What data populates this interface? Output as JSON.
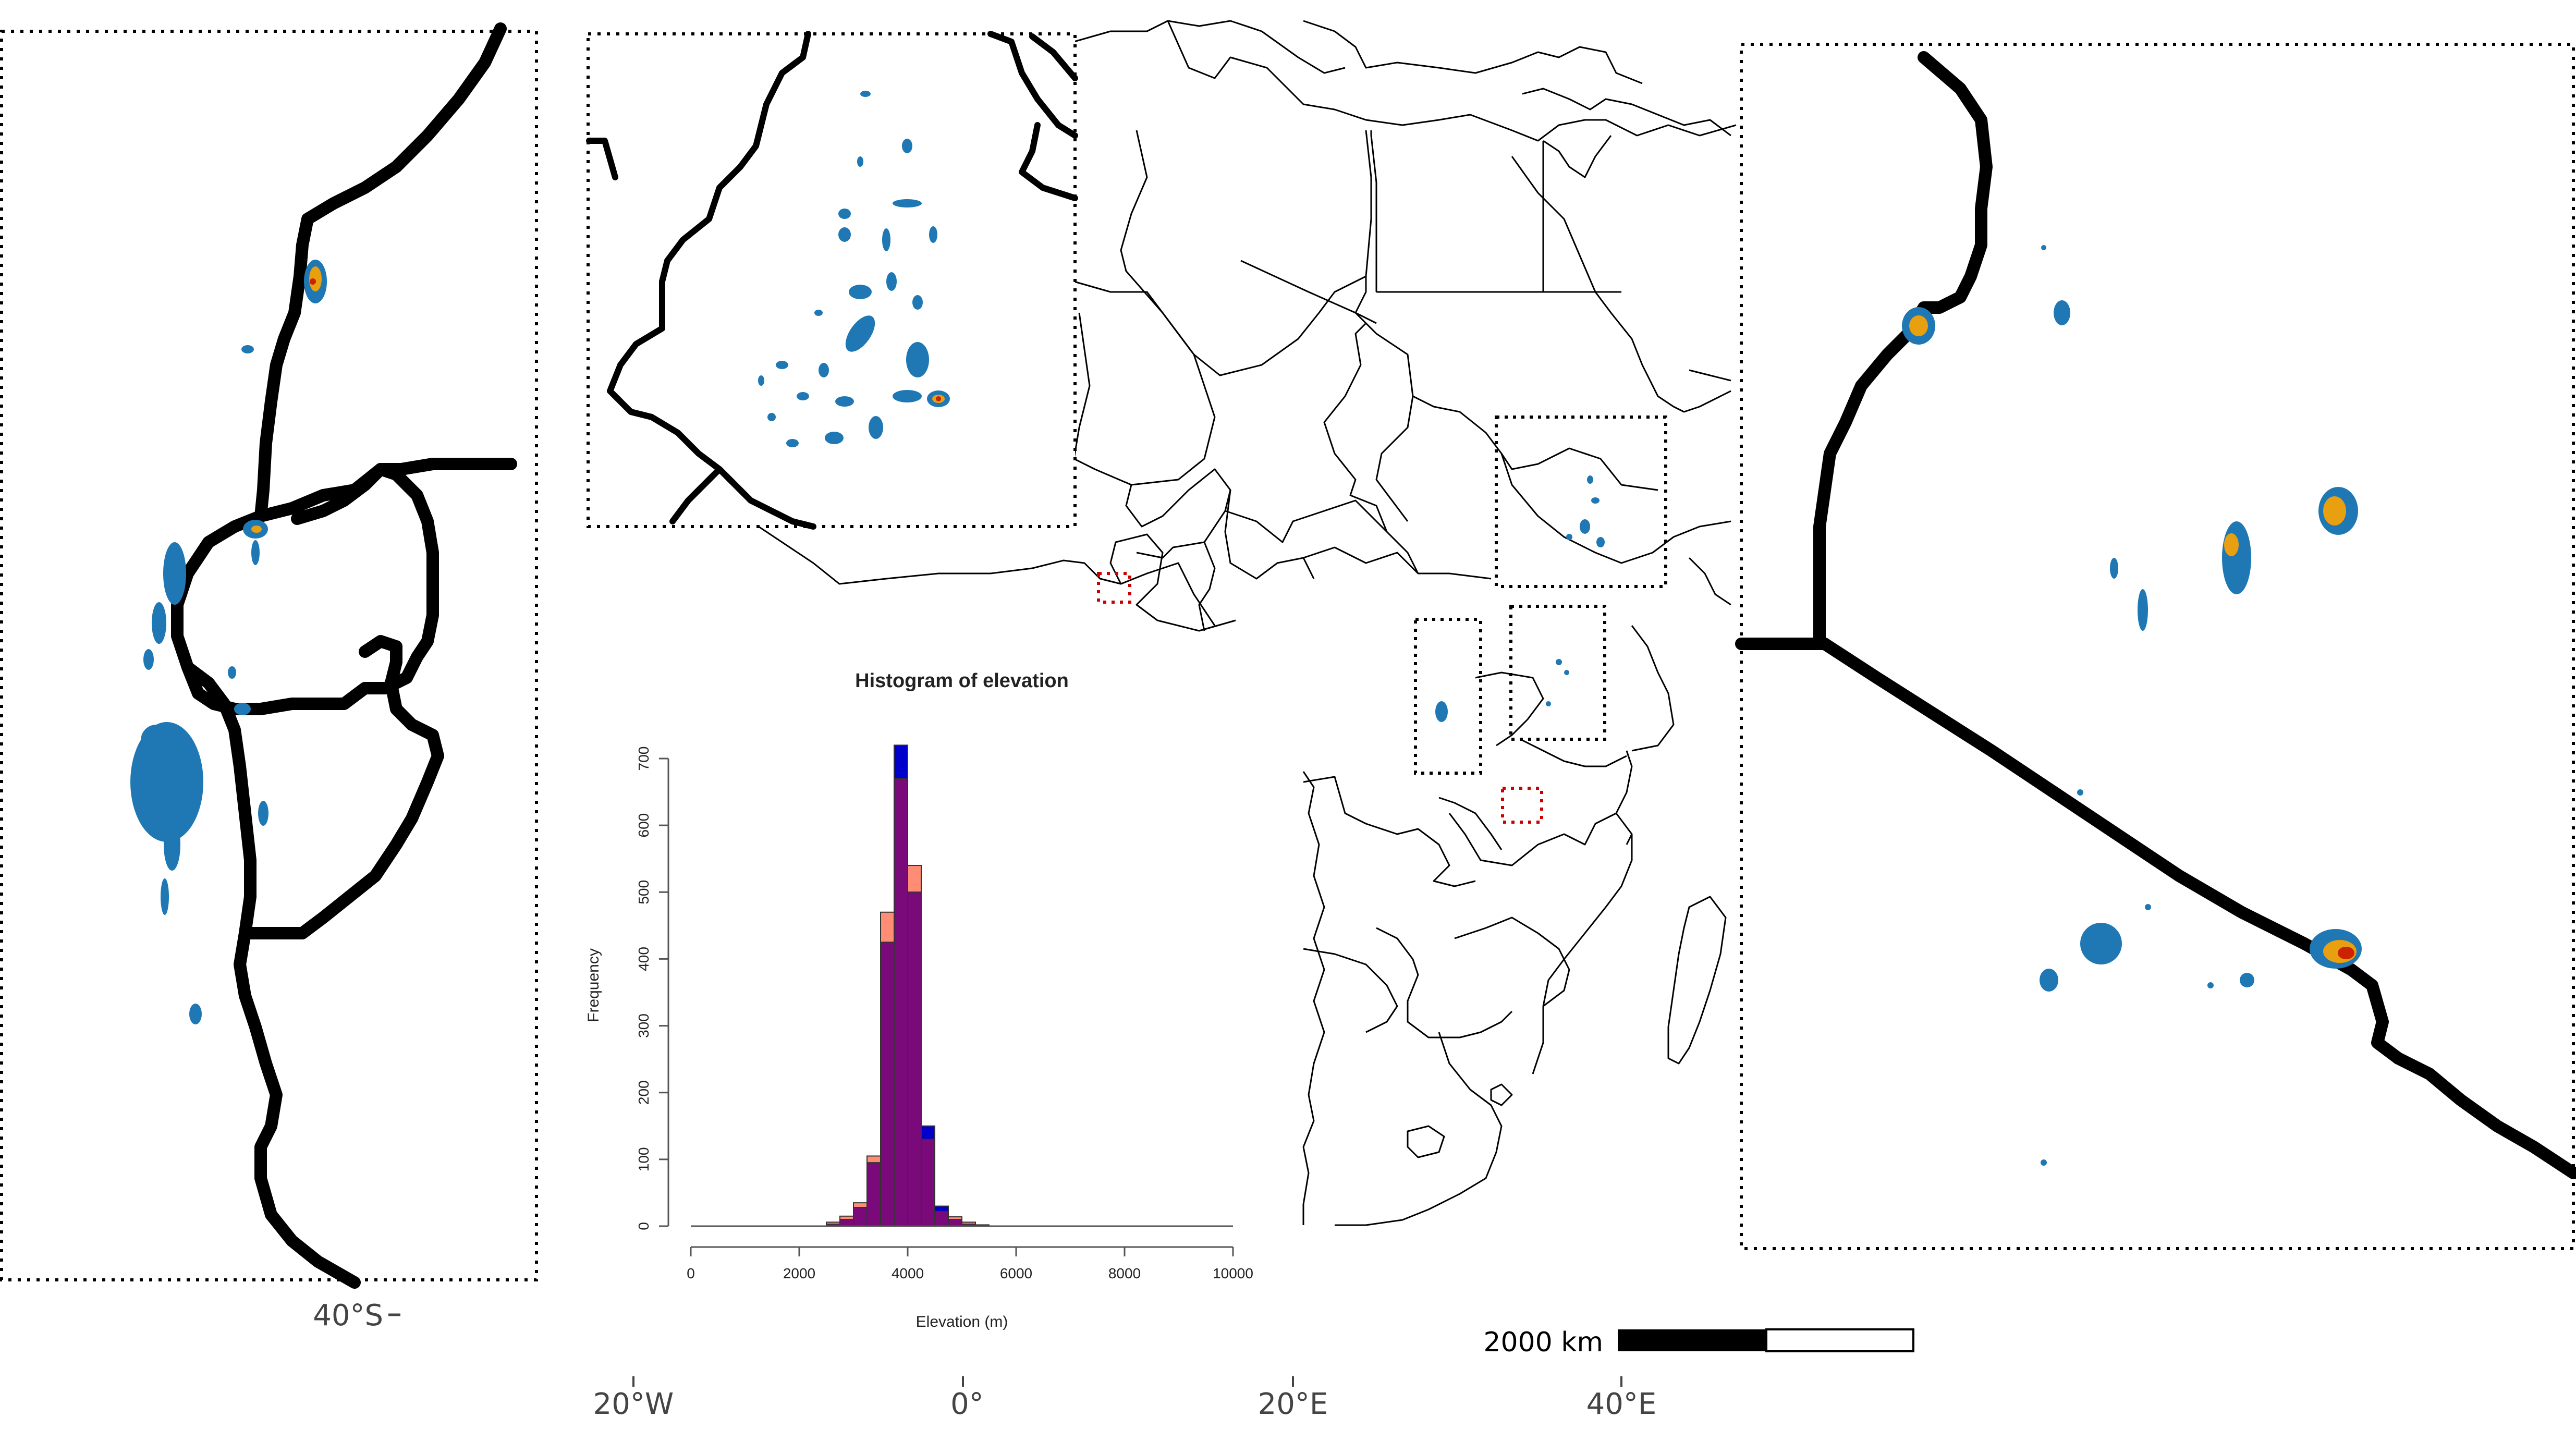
{
  "map": {
    "axis_labels": {
      "lon": [
        "20°W",
        "0°",
        "20°E",
        "40°E"
      ],
      "lat": [
        "40°S"
      ]
    },
    "scale_bar": {
      "label": "2000 km",
      "distance_km": 2000
    }
  },
  "chart_data": {
    "type": "bar",
    "title": "Histogram of elevation",
    "xlabel": "Elevation (m)",
    "ylabel": "Frequency",
    "xlim": [
      0,
      10000
    ],
    "ylim": [
      0,
      700
    ],
    "x_ticks": [
      "0",
      "2000",
      "4000",
      "6000",
      "8000",
      "10000"
    ],
    "y_ticks": [
      "0",
      "100",
      "200",
      "300",
      "400",
      "500",
      "600",
      "700"
    ],
    "bin_width": 250,
    "bin_starts": [
      2500,
      2750,
      3000,
      3250,
      3500,
      3750,
      4000,
      4250,
      4500,
      4750,
      5000,
      5250
    ],
    "series": [
      {
        "color": "#0000cc",
        "values": [
          3,
          10,
          28,
          95,
          425,
          720,
          500,
          150,
          30,
          10,
          3,
          1
        ]
      },
      {
        "color": "#ff8c74",
        "values": [
          6,
          15,
          35,
          105,
          470,
          670,
          540,
          130,
          22,
          14,
          6,
          2
        ]
      }
    ],
    "overlap_color": "#7a0a7a"
  },
  "colors": {
    "country_border": "#000000",
    "inset_frame": "#000000",
    "highlight_frame": "#cc0000",
    "raster_low": "#1f78b4",
    "raster_mid": "#e8a010",
    "raster_high": "#cc2200"
  }
}
